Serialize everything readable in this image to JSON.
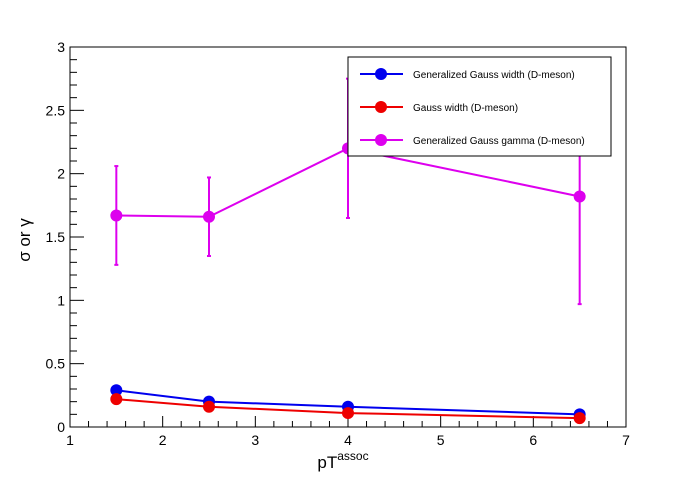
{
  "chart_data": {
    "type": "line",
    "title": "",
    "xlabel_main": "pT",
    "xlabel_sup": "assoc",
    "ylabel": "σ or γ",
    "xlim": [
      1,
      7
    ],
    "ylim": [
      0,
      3
    ],
    "xticks": [
      1,
      2,
      3,
      4,
      5,
      6,
      7
    ],
    "yticks": [
      0,
      0.5,
      1,
      1.5,
      2,
      2.5,
      3
    ],
    "ytick_labels": [
      "0",
      "0.5",
      "1",
      "1.5",
      "2",
      "2.5",
      "3"
    ],
    "legend_position": "top-right",
    "series": [
      {
        "name": "Generalized Gauss width (D-meson)",
        "color": "#0000ee",
        "x": [
          1.5,
          2.5,
          4.0,
          6.5
        ],
        "y": [
          0.29,
          0.2,
          0.16,
          0.1
        ],
        "yerr": [
          0,
          0,
          0,
          0
        ]
      },
      {
        "name": "Gauss width (D-meson)",
        "color": "#ee0000",
        "x": [
          1.5,
          2.5,
          4.0,
          6.5
        ],
        "y": [
          0.22,
          0.16,
          0.11,
          0.07
        ],
        "yerr": [
          0,
          0,
          0,
          0
        ]
      },
      {
        "name": "Generalized Gauss gamma (D-meson)",
        "color": "#dd00ee",
        "x": [
          1.5,
          2.5,
          4.0,
          6.5
        ],
        "y": [
          1.67,
          1.66,
          2.2,
          1.82
        ],
        "yerr": [
          0.39,
          0.31,
          0.55,
          0.85
        ]
      }
    ]
  }
}
